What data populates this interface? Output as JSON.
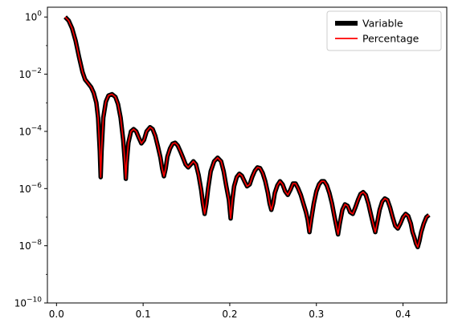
{
  "chart_data": {
    "type": "line",
    "x_scale": "linear",
    "y_scale": "log",
    "xlim": [
      -0.0105,
      0.4505
    ],
    "ylim": [
      1e-10,
      2.2
    ],
    "xticks": [
      0.0,
      0.1,
      0.2,
      0.3,
      0.4
    ],
    "xtick_labels": [
      "0.0",
      "0.1",
      "0.2",
      "0.3",
      "0.4"
    ],
    "yticks": [
      1e-10,
      1e-08,
      1e-06,
      0.0001,
      0.01,
      1
    ],
    "ytick_labels": [
      {
        "base": "10",
        "exp": "−10"
      },
      {
        "base": "10",
        "exp": "−8"
      },
      {
        "base": "10",
        "exp": "−6"
      },
      {
        "base": "10",
        "exp": "−4"
      },
      {
        "base": "10",
        "exp": "−2"
      },
      {
        "base": "10",
        "exp": "0"
      }
    ],
    "grid": false,
    "legend_position": "top-right",
    "series": [
      {
        "name": "Variable",
        "color": "#000000",
        "style": "thick",
        "points": [
          [
            0.01,
            1.0
          ],
          [
            0.014,
            0.75
          ],
          [
            0.018,
            0.4
          ],
          [
            0.022,
            0.15
          ],
          [
            0.026,
            0.04
          ],
          [
            0.03,
            0.012
          ],
          [
            0.033,
            0.0065
          ],
          [
            0.036,
            0.005
          ],
          [
            0.04,
            0.0035
          ],
          [
            0.043,
            0.0022
          ],
          [
            0.046,
            0.001
          ],
          [
            0.048,
            0.0003
          ],
          [
            0.05,
            2e-05
          ],
          [
            0.051,
            2.5e-06
          ],
          [
            0.052,
            2e-05
          ],
          [
            0.054,
            0.0003
          ],
          [
            0.057,
            0.0011
          ],
          [
            0.06,
            0.0018
          ],
          [
            0.064,
            0.002
          ],
          [
            0.068,
            0.0016
          ],
          [
            0.071,
            0.0009
          ],
          [
            0.074,
            0.0003
          ],
          [
            0.077,
            5e-05
          ],
          [
            0.079,
            8e-06
          ],
          [
            0.08,
            2.2e-06
          ],
          [
            0.081,
            8e-06
          ],
          [
            0.083,
            4e-05
          ],
          [
            0.086,
            0.0001
          ],
          [
            0.089,
            0.00012
          ],
          [
            0.092,
            0.0001
          ],
          [
            0.095,
            6e-05
          ],
          [
            0.098,
            3.8e-05
          ],
          [
            0.101,
            5e-05
          ],
          [
            0.104,
            0.0001
          ],
          [
            0.108,
            0.00014
          ],
          [
            0.111,
            0.00012
          ],
          [
            0.114,
            7e-05
          ],
          [
            0.117,
            3e-05
          ],
          [
            0.12,
            1.2e-05
          ],
          [
            0.122,
            5e-06
          ],
          [
            0.124,
            2.7e-06
          ],
          [
            0.126,
            5e-06
          ],
          [
            0.128,
            1.3e-05
          ],
          [
            0.131,
            2.5e-05
          ],
          [
            0.134,
            3.7e-05
          ],
          [
            0.137,
            4e-05
          ],
          [
            0.14,
            3.2e-05
          ],
          [
            0.143,
            2e-05
          ],
          [
            0.146,
            1.2e-05
          ],
          [
            0.149,
            7e-06
          ],
          [
            0.152,
            5.5e-06
          ],
          [
            0.155,
            7e-06
          ],
          [
            0.158,
            9e-06
          ],
          [
            0.161,
            7e-06
          ],
          [
            0.164,
            3e-06
          ],
          [
            0.167,
            9e-07
          ],
          [
            0.169,
            3e-07
          ],
          [
            0.171,
            1.3e-07
          ],
          [
            0.173,
            3e-07
          ],
          [
            0.175,
            1e-06
          ],
          [
            0.178,
            4e-06
          ],
          [
            0.182,
            9e-06
          ],
          [
            0.186,
            1.2e-05
          ],
          [
            0.19,
            9e-06
          ],
          [
            0.193,
            4e-06
          ],
          [
            0.196,
            1.2e-06
          ],
          [
            0.199,
            4e-07
          ],
          [
            0.201,
            9e-08
          ],
          [
            0.203,
            4e-07
          ],
          [
            0.205,
            1.2e-06
          ],
          [
            0.208,
            2.5e-06
          ],
          [
            0.211,
            3.3e-06
          ],
          [
            0.214,
            2.8e-06
          ],
          [
            0.217,
            1.8e-06
          ],
          [
            0.22,
            1.2e-06
          ],
          [
            0.223,
            1.4e-06
          ],
          [
            0.226,
            2.6e-06
          ],
          [
            0.229,
            4.2e-06
          ],
          [
            0.232,
            5.5e-06
          ],
          [
            0.235,
            5.2e-06
          ],
          [
            0.238,
            3.5e-06
          ],
          [
            0.241,
            1.8e-06
          ],
          [
            0.244,
            7e-07
          ],
          [
            0.246,
            3e-07
          ],
          [
            0.248,
            1.8e-07
          ],
          [
            0.25,
            3e-07
          ],
          [
            0.252,
            7e-07
          ],
          [
            0.255,
            1.3e-06
          ],
          [
            0.258,
            1.8e-06
          ],
          [
            0.261,
            1.4e-06
          ],
          [
            0.264,
            8e-07
          ],
          [
            0.267,
            6e-07
          ],
          [
            0.27,
            9e-07
          ],
          [
            0.273,
            1.5e-06
          ],
          [
            0.276,
            1.5e-06
          ],
          [
            0.279,
            1e-06
          ],
          [
            0.282,
            6e-07
          ],
          [
            0.285,
            3e-07
          ],
          [
            0.288,
            1.5e-07
          ],
          [
            0.29,
            8e-08
          ],
          [
            0.292,
            3e-08
          ],
          [
            0.294,
            8e-08
          ],
          [
            0.297,
            3e-07
          ],
          [
            0.3,
            8e-07
          ],
          [
            0.303,
            1.4e-06
          ],
          [
            0.306,
            1.8e-06
          ],
          [
            0.309,
            1.8e-06
          ],
          [
            0.312,
            1.3e-06
          ],
          [
            0.315,
            7e-07
          ],
          [
            0.318,
            3e-07
          ],
          [
            0.321,
            1e-07
          ],
          [
            0.323,
            5e-08
          ],
          [
            0.325,
            2.5e-08
          ],
          [
            0.327,
            6e-08
          ],
          [
            0.33,
            1.8e-07
          ],
          [
            0.333,
            2.8e-07
          ],
          [
            0.336,
            2.5e-07
          ],
          [
            0.339,
            1.5e-07
          ],
          [
            0.342,
            1.3e-07
          ],
          [
            0.345,
            2.2e-07
          ],
          [
            0.348,
            4e-07
          ],
          [
            0.351,
            6.5e-07
          ],
          [
            0.354,
            7.5e-07
          ],
          [
            0.357,
            6e-07
          ],
          [
            0.36,
            3e-07
          ],
          [
            0.363,
            1.2e-07
          ],
          [
            0.366,
            5e-08
          ],
          [
            0.368,
            3e-08
          ],
          [
            0.37,
            6e-08
          ],
          [
            0.373,
            1.8e-07
          ],
          [
            0.376,
            3.5e-07
          ],
          [
            0.379,
            4.5e-07
          ],
          [
            0.382,
            4e-07
          ],
          [
            0.385,
            2.2e-07
          ],
          [
            0.388,
            1e-07
          ],
          [
            0.391,
            5e-08
          ],
          [
            0.394,
            4e-08
          ],
          [
            0.397,
            6e-08
          ],
          [
            0.4,
            1e-07
          ],
          [
            0.403,
            1.3e-07
          ],
          [
            0.406,
            1.1e-07
          ],
          [
            0.409,
            6e-08
          ],
          [
            0.411,
            3e-08
          ],
          [
            0.413,
            2e-08
          ],
          [
            0.415,
            1.2e-08
          ],
          [
            0.417,
            9e-09
          ],
          [
            0.419,
            1.5e-08
          ],
          [
            0.421,
            3e-08
          ],
          [
            0.424,
            6e-08
          ],
          [
            0.427,
            1e-07
          ],
          [
            0.43,
            1.2e-07
          ]
        ]
      },
      {
        "name": "Percentage",
        "color": "#ff0000",
        "style": "thin",
        "same_points_as": "Variable"
      }
    ]
  }
}
